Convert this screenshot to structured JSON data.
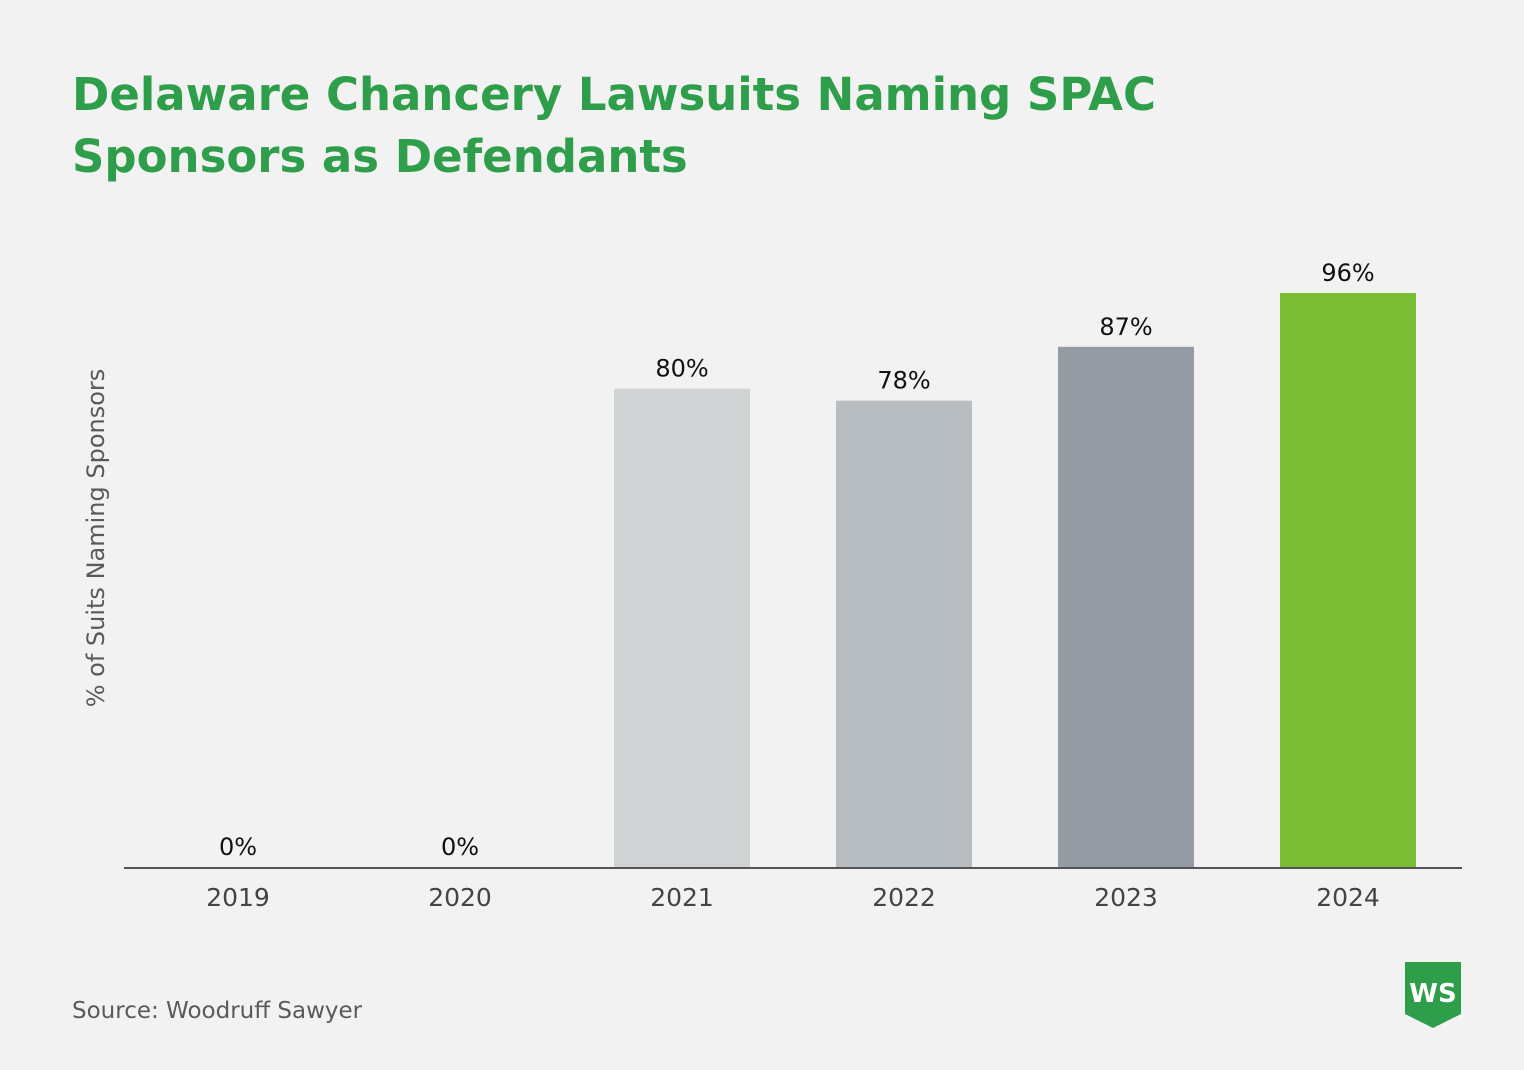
{
  "title_lines": [
    "Delaware Chancery Lawsuits Naming SPAC",
    "Sponsors as Defendants"
  ],
  "source": "Source: Woodruff Sawyer",
  "logo": {
    "text": "WS",
    "color": "#2e9e4a"
  },
  "colors": {
    "title": "#2e9e4a",
    "axis": "#555555",
    "background": "#f2f2f2"
  },
  "chart_data": {
    "type": "bar",
    "title": "Delaware Chancery Lawsuits Naming SPAC Sponsors as Defendants",
    "xlabel": "",
    "ylabel": "% of Suits Naming Sponsors",
    "categories": [
      "2019",
      "2020",
      "2021",
      "2022",
      "2023",
      "2024"
    ],
    "values": [
      0,
      0,
      80,
      78,
      87,
      96
    ],
    "data_labels": [
      "0%",
      "0%",
      "80%",
      "78%",
      "87%",
      "96%"
    ],
    "bar_colors": [
      "#d0d3d4",
      "#d0d3d4",
      "#d0d3d4",
      "#b8bdc1",
      "#949ba2",
      "#7bbd35"
    ],
    "ylim": [
      0,
      100
    ],
    "grid": false,
    "legend": "none"
  }
}
